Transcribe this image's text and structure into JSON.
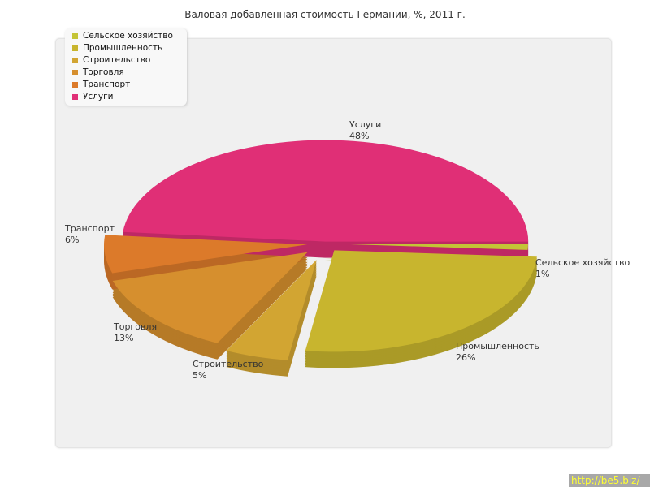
{
  "chart_data": {
    "type": "pie",
    "title": "Валовая добавленная стоимость Германии, %, 2011 г.",
    "categories": [
      "Сельское хозяйство",
      "Промышленность",
      "Строительство",
      "Торговля",
      "Транспорт",
      "Услуги"
    ],
    "values": [
      1,
      26,
      5,
      13,
      6,
      48
    ],
    "labels": [
      "1%",
      "26%",
      "5%",
      "13%",
      "6%",
      "48%"
    ],
    "colors": [
      "#c4c436",
      "#c8b52e",
      "#d2a532",
      "#d68f2e",
      "#dc7a2a",
      "#e02f76"
    ],
    "legend": "top-left",
    "three_d": true,
    "exploded": true
  },
  "watermark": "http://be5.biz/"
}
